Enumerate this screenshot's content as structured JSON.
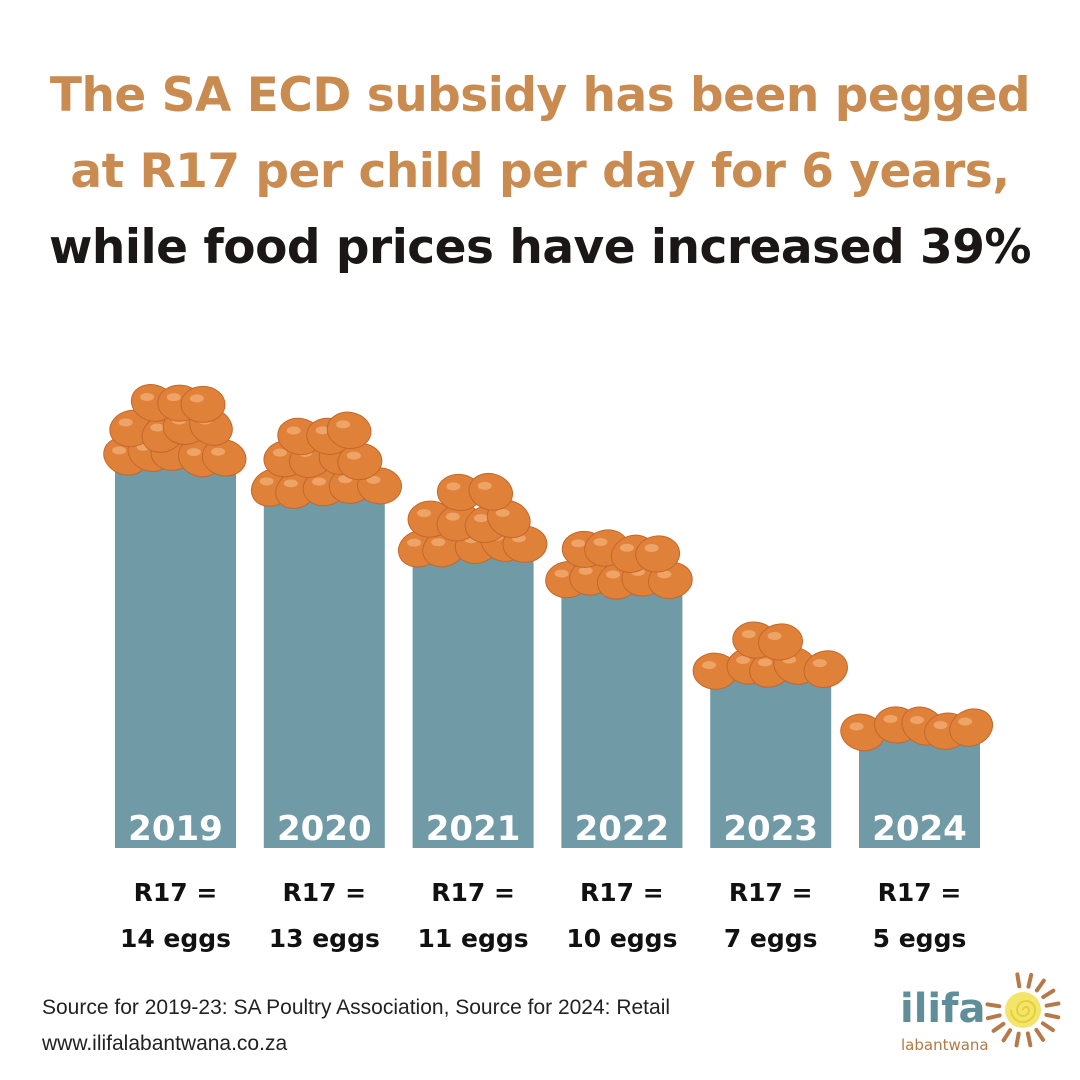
{
  "title": {
    "line1": "The SA ECD subsidy has been pegged",
    "line2": "at R17 per child per day for 6 years,",
    "line3": "while food prices have increased 39%"
  },
  "chart_data": {
    "type": "bar",
    "categories": [
      "2019",
      "2020",
      "2021",
      "2022",
      "2023",
      "2024"
    ],
    "values": [
      14,
      13,
      11,
      10,
      7,
      5
    ],
    "unit": "eggs",
    "labels": [
      {
        "top": "R17 =",
        "bottom": "14 eggs"
      },
      {
        "top": "R17 =",
        "bottom": "13 eggs"
      },
      {
        "top": "R17 =",
        "bottom": "11 eggs"
      },
      {
        "top": "R17 =",
        "bottom": "10 eggs"
      },
      {
        "top": "R17 =",
        "bottom": "7 eggs"
      },
      {
        "top": "R17 =",
        "bottom": "5 eggs"
      }
    ],
    "grid": false,
    "colors": {
      "bar": "#6f9aa6",
      "egg": "#e0813a",
      "title": "#c98b4f"
    }
  },
  "footer": {
    "source": "Source for 2019-23: SA Poultry Association, Source for 2024: Retail",
    "url": "www.ilifalabantwana.co.za"
  },
  "logo": {
    "name": "ilifa",
    "sub": "labantwana"
  }
}
